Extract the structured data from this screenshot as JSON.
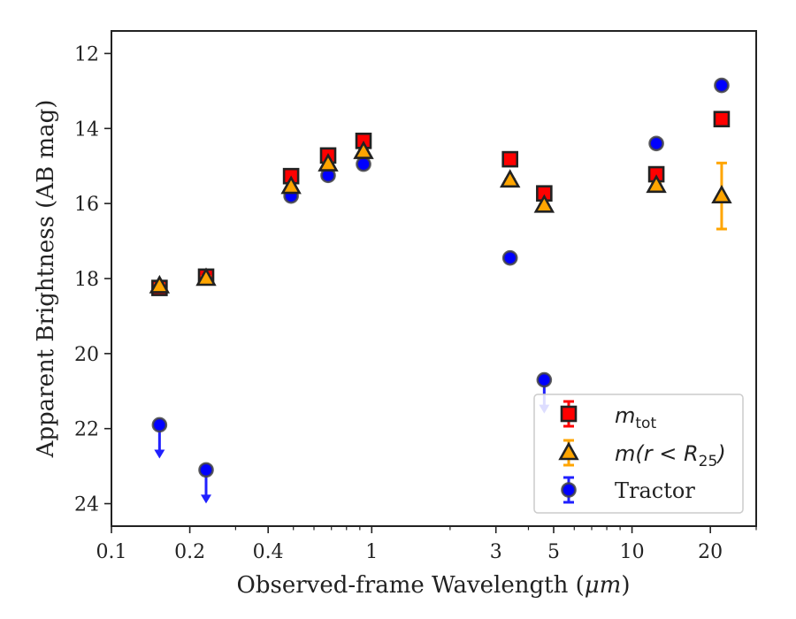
{
  "chart_data": {
    "type": "scatter",
    "title": "",
    "xlabel": "Observed-frame Wavelength (",
    "xlabel_unit": "μm",
    "xlabel_close": ")",
    "ylabel": "Apparent Brightness (AB mag)",
    "x_scale": "log",
    "y_inverted": true,
    "xlim": [
      0.1,
      30
    ],
    "ylim": [
      11.4,
      24.6
    ],
    "x_ticks": [
      {
        "value": 0.1,
        "label": "0.1"
      },
      {
        "value": 0.2,
        "label": "0.2"
      },
      {
        "value": 0.4,
        "label": "0.4"
      },
      {
        "value": 1,
        "label": "1"
      },
      {
        "value": 3,
        "label": "3"
      },
      {
        "value": 5,
        "label": "5"
      },
      {
        "value": 10,
        "label": "10"
      },
      {
        "value": 20,
        "label": "20"
      }
    ],
    "y_ticks": [
      {
        "value": 12,
        "label": "12"
      },
      {
        "value": 14,
        "label": "14"
      },
      {
        "value": 16,
        "label": "16"
      },
      {
        "value": 18,
        "label": "18"
      },
      {
        "value": 20,
        "label": "20"
      },
      {
        "value": 22,
        "label": "22"
      },
      {
        "value": 24,
        "label": "24"
      }
    ],
    "grid": false,
    "legend_position": "lower-right",
    "series": [
      {
        "name": "m_tot",
        "legend_symbol": "m",
        "legend_sub": "tot",
        "marker": "square",
        "color": "#ff0000",
        "err_color": "#ff0000",
        "points": [
          {
            "x": 0.153,
            "y": 18.25,
            "err": 0.05
          },
          {
            "x": 0.231,
            "y": 17.95,
            "err": 0.05
          },
          {
            "x": 0.49,
            "y": 15.27,
            "err": 0.03
          },
          {
            "x": 0.68,
            "y": 14.72,
            "err": 0.03
          },
          {
            "x": 0.93,
            "y": 14.33,
            "err": 0.03
          },
          {
            "x": 3.4,
            "y": 14.82,
            "err": 0.03
          },
          {
            "x": 4.6,
            "y": 15.73,
            "err": 0.03
          },
          {
            "x": 12.4,
            "y": 15.22,
            "err": 0.03
          },
          {
            "x": 22.1,
            "y": 13.75,
            "err": 0.05
          }
        ]
      },
      {
        "name": "m(r<R_25)",
        "legend_symbol": "m",
        "legend_text": "(r < R",
        "legend_sub": "25",
        "legend_close": ")",
        "marker": "triangle",
        "color": "#ffa500",
        "err_color": "#ffa500",
        "points": [
          {
            "x": 0.153,
            "y": 18.2,
            "err": 0.05
          },
          {
            "x": 0.231,
            "y": 18.0,
            "err": 0.05
          },
          {
            "x": 0.49,
            "y": 15.55,
            "err": 0.03
          },
          {
            "x": 0.68,
            "y": 14.95,
            "err": 0.03
          },
          {
            "x": 0.93,
            "y": 14.62,
            "err": 0.03
          },
          {
            "x": 3.4,
            "y": 15.38,
            "err": 0.03
          },
          {
            "x": 4.6,
            "y": 16.05,
            "err": 0.03
          },
          {
            "x": 12.4,
            "y": 15.52,
            "err": 0.05
          },
          {
            "x": 22.1,
            "y": 15.8,
            "err": 0.88
          }
        ]
      },
      {
        "name": "Tractor",
        "legend_text": "Tractor",
        "marker": "circle",
        "color": "#0000ff",
        "err_color": "#2020ff",
        "points": [
          {
            "x": 0.153,
            "y": 21.9,
            "upper_limit": true
          },
          {
            "x": 0.231,
            "y": 23.1,
            "upper_limit": true
          },
          {
            "x": 0.49,
            "y": 15.8,
            "err": 0.03
          },
          {
            "x": 0.68,
            "y": 15.25,
            "err": 0.03
          },
          {
            "x": 0.93,
            "y": 14.95,
            "err": 0.03
          },
          {
            "x": 3.4,
            "y": 17.45,
            "err": 0.03
          },
          {
            "x": 4.6,
            "y": 20.7,
            "upper_limit": true
          },
          {
            "x": 12.4,
            "y": 14.4,
            "err": 0.03
          },
          {
            "x": 22.1,
            "y": 12.85,
            "err": 0.03
          }
        ]
      }
    ]
  }
}
